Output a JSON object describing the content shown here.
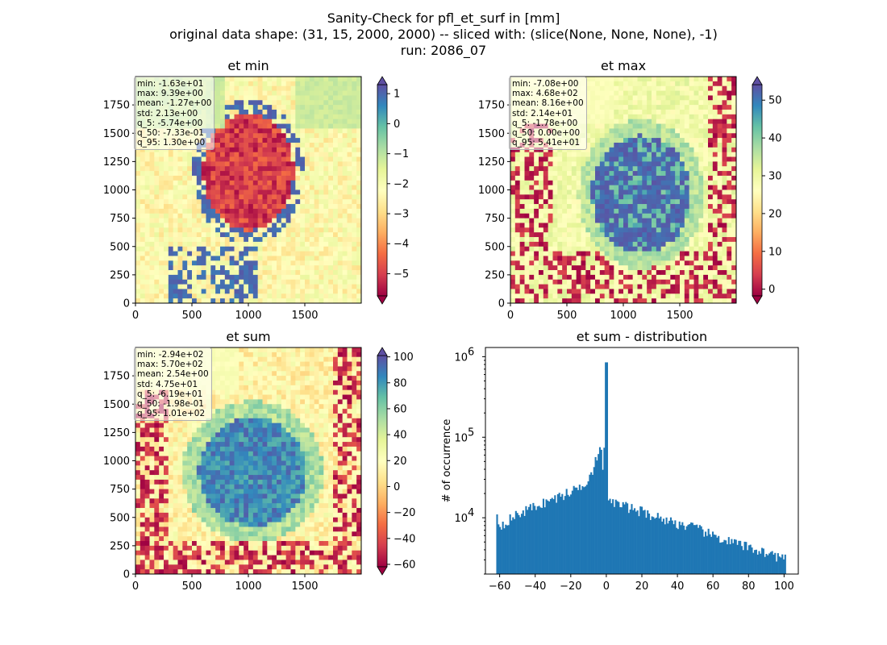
{
  "suptitle": {
    "line1": "Sanity-Check for pfl_et_surf in [mm]",
    "line2": "original data shape: (31, 15, 2000, 2000) -- sliced with: (slice(None, None, None), -1)",
    "line3": "run: 2086_07"
  },
  "colors": {
    "hist_bar": "#1f77b4",
    "spectral": [
      "#9e0142",
      "#d53e4f",
      "#f46d43",
      "#fdae61",
      "#fee08b",
      "#ffffbf",
      "#e6f598",
      "#abdda4",
      "#66c2a5",
      "#3288bd",
      "#5e4fa2"
    ]
  },
  "chart_data": [
    {
      "type": "heatmap",
      "title": "et min",
      "colormap": "Spectral",
      "xlim": [
        0,
        2000
      ],
      "ylim": [
        0,
        2000
      ],
      "xticks": [
        0,
        500,
        1000,
        1500
      ],
      "yticks": [
        0,
        250,
        500,
        750,
        1000,
        1250,
        1500,
        1750
      ],
      "clim": [
        -5.74,
        1.3
      ],
      "colorbar_ticks": [
        1,
        0,
        -1,
        -2,
        -3,
        -4,
        -5
      ],
      "colorbar_extend": "both",
      "stats": [
        "min: -1.63e+01",
        "max: 9.39e+00",
        "mean: -1.27e+00",
        "std: 2.13e+00",
        "q_5: -5.74e+00",
        "q_50: -7.33e-01",
        "q_95: 1.30e+00"
      ]
    },
    {
      "type": "heatmap",
      "title": "et max",
      "colormap": "Spectral",
      "xlim": [
        0,
        2000
      ],
      "ylim": [
        0,
        2000
      ],
      "xticks": [
        0,
        500,
        1000,
        1500
      ],
      "yticks": [
        0,
        250,
        500,
        750,
        1000,
        1250,
        1500,
        1750
      ],
      "clim": [
        -1.78,
        54.1
      ],
      "colorbar_ticks": [
        50,
        40,
        30,
        20,
        10,
        0
      ],
      "colorbar_extend": "both",
      "stats": [
        "min: -7.08e+00",
        "max: 4.68e+02",
        "mean: 8.16e+00",
        "std: 2.14e+01",
        "q_5: -1.78e+00",
        "q_50: 0.00e+00",
        "q_95: 5.41e+01"
      ]
    },
    {
      "type": "heatmap",
      "title": "et sum",
      "colormap": "Spectral",
      "xlim": [
        0,
        2000
      ],
      "ylim": [
        0,
        2000
      ],
      "xticks": [
        0,
        500,
        1000,
        1500
      ],
      "yticks": [
        0,
        250,
        500,
        750,
        1000,
        1250,
        1500,
        1750
      ],
      "clim": [
        -61.9,
        101
      ],
      "colorbar_ticks": [
        100,
        80,
        60,
        40,
        20,
        0,
        -20,
        -40,
        -60
      ],
      "colorbar_extend": "both",
      "stats": [
        "min: -2.94e+02",
        "max: 5.70e+02",
        "mean: 2.54e+00",
        "std: 4.75e+01",
        "q_5: -6.19e+01",
        "q_50: -1.98e-01",
        "q_95: 1.01e+02"
      ]
    },
    {
      "type": "bar",
      "title": "et sum - distribution",
      "ylabel": "# of occurrence",
      "yscale": "log",
      "xlim": [
        -68,
        108
      ],
      "ylim": [
        2000,
        1300000
      ],
      "xticks": [
        -60,
        -40,
        -20,
        0,
        20,
        40,
        60,
        80,
        100
      ],
      "yticks": [
        {
          "value": 10000,
          "base": "10",
          "exp": "4"
        },
        {
          "value": 100000,
          "base": "10",
          "exp": "5"
        },
        {
          "value": 1000000,
          "base": "10",
          "exp": "6"
        }
      ],
      "bins": {
        "start": -61.9,
        "end": 101,
        "count": 200
      },
      "profile": [
        [
          -61.9,
          9000
        ],
        [
          -60,
          8000
        ],
        [
          -50,
          11000
        ],
        [
          -40,
          14000
        ],
        [
          -30,
          17000
        ],
        [
          -20,
          21000
        ],
        [
          -12,
          27000
        ],
        [
          -8,
          38000
        ],
        [
          -5,
          60000
        ],
        [
          -3,
          70000
        ],
        [
          -1.5,
          30000
        ],
        [
          -0.3,
          850000
        ],
        [
          0.4,
          22000
        ],
        [
          2,
          16000
        ],
        [
          10,
          14000
        ],
        [
          20,
          12000
        ],
        [
          30,
          10000
        ],
        [
          40,
          8500
        ],
        [
          50,
          7500
        ],
        [
          60,
          6000
        ],
        [
          70,
          5000
        ],
        [
          80,
          4300
        ],
        [
          90,
          3700
        ],
        [
          100,
          3100
        ],
        [
          101,
          3000
        ]
      ]
    }
  ]
}
